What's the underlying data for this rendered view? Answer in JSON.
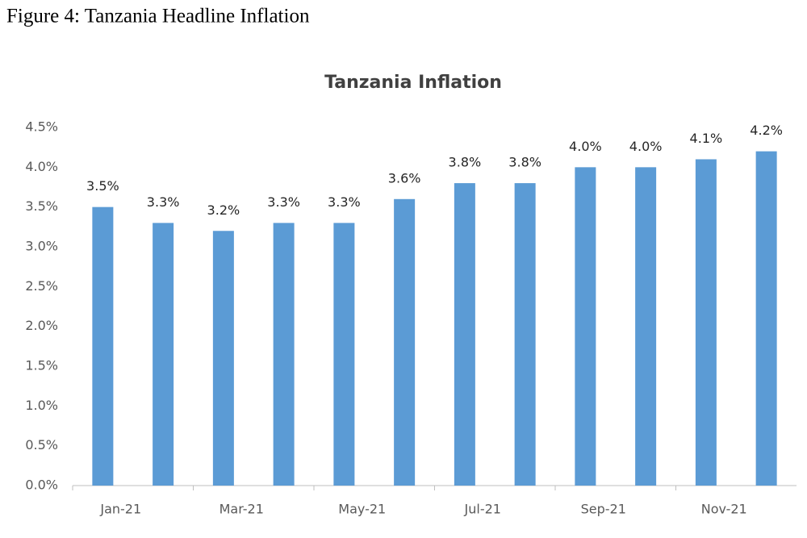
{
  "caption": "Figure 4: Tanzania Headline Inflation",
  "chart_data": {
    "type": "bar",
    "title": "Tanzania Inflation",
    "categories": [
      "Jan-21",
      null,
      "Mar-21",
      null,
      "May-21",
      null,
      "Jul-21",
      null,
      "Sep-21",
      null,
      "Nov-21",
      null
    ],
    "values": [
      3.5,
      3.3,
      3.2,
      3.3,
      3.3,
      3.6,
      3.8,
      3.8,
      4.0,
      4.0,
      4.1,
      4.2
    ],
    "value_labels": [
      "3.5%",
      "3.3%",
      "3.2%",
      "3.3%",
      "3.3%",
      "3.6%",
      "3.8%",
      "3.8%",
      "4.0%",
      "4.0%",
      "4.1%",
      "4.2%"
    ],
    "color": "#5b9bd5",
    "ylim": [
      0,
      4.5
    ],
    "yticks": [
      {
        "value": 0,
        "label": "0.0%"
      },
      {
        "value": 0.5,
        "label": "0.5%"
      },
      {
        "value": 1,
        "label": "1.0%"
      },
      {
        "value": 1.5,
        "label": "1.5%"
      },
      {
        "value": 2,
        "label": "2.0%"
      },
      {
        "value": 2.5,
        "label": "2.5%"
      },
      {
        "value": 3,
        "label": "3.0%"
      },
      {
        "value": 3.5,
        "label": "3.5%"
      },
      {
        "value": 4,
        "label": "4.0%"
      },
      {
        "value": 4.5,
        "label": "4.5%"
      }
    ],
    "grid": false
  }
}
